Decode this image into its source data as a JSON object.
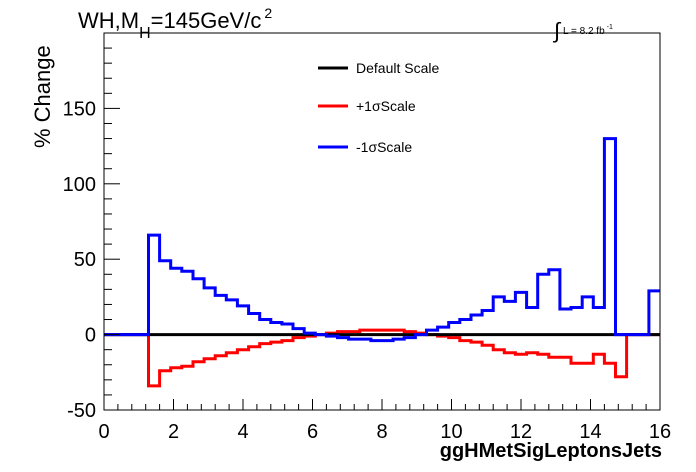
{
  "chart_data": {
    "type": "line",
    "title_main": "WH,M",
    "title_sub": "H",
    "title_tail": "=145GeV/c",
    "title_sup": "2",
    "lumi_integral": "∫",
    "lumi_text": "L = 8.2 fb",
    "lumi_sup": "-1",
    "xlabel": "ggHMetSigLeptonsJets",
    "ylabel": "% Change",
    "xlim": [
      0,
      16
    ],
    "ylim": [
      -50,
      200
    ],
    "x_ticks": [
      "0",
      "2",
      "4",
      "6",
      "8",
      "10",
      "12",
      "14",
      "16"
    ],
    "y_ticks": [
      "-50",
      "0",
      "50",
      "100",
      "150"
    ],
    "x_tick_values": [
      0,
      2,
      4,
      6,
      8,
      10,
      12,
      14,
      16
    ],
    "y_tick_values": [
      -50,
      0,
      50,
      100,
      150
    ],
    "bin_width": 0.32,
    "n_bins": 50,
    "legend_position": "top-center",
    "grid": false,
    "series": [
      {
        "name": "Default Scale",
        "color": "#000000",
        "values": [
          0,
          0,
          0,
          0,
          0,
          0,
          0,
          0,
          0,
          0,
          0,
          0,
          0,
          0,
          0,
          0,
          0,
          0,
          0,
          0,
          0,
          0,
          0,
          0,
          0,
          0,
          0,
          0,
          0,
          0,
          0,
          0,
          0,
          0,
          0,
          0,
          0,
          0,
          0,
          0,
          0,
          0,
          0,
          0,
          0,
          0,
          0,
          0,
          0,
          0
        ]
      },
      {
        "name": "+1σScale",
        "color": "#ff0000",
        "values": [
          0,
          0,
          0,
          0,
          -34,
          -24,
          -22,
          -21,
          -18,
          -16,
          -14,
          -12,
          -10,
          -8,
          -6,
          -5,
          -4,
          -2,
          -1,
          0,
          1,
          2,
          2,
          3,
          3,
          3,
          3,
          2,
          1,
          0,
          -1,
          -2,
          -4,
          -5,
          -7,
          -10,
          -12,
          -13,
          -12,
          -13,
          -15,
          -15,
          -19,
          -19,
          -13,
          -19,
          -28,
          0,
          0,
          0
        ]
      },
      {
        "name": "-1σScale",
        "color": "#0000ff",
        "values": [
          0,
          0,
          0,
          0,
          66,
          49,
          44,
          42,
          37,
          31,
          26,
          23,
          19,
          14,
          10,
          8,
          7,
          4,
          1,
          0,
          -1,
          -2,
          -3,
          -3,
          -4,
          -4,
          -3,
          -2,
          0,
          3,
          5,
          8,
          10,
          13,
          16,
          25,
          22,
          28,
          18,
          40,
          43,
          17,
          18,
          25,
          18,
          130,
          0,
          0,
          0,
          29
        ]
      }
    ]
  }
}
